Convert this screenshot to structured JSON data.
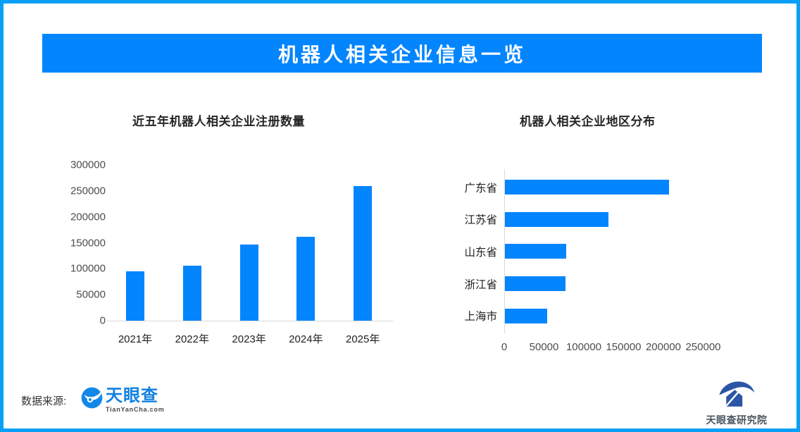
{
  "page": {
    "border_color": "#0a9ff7",
    "background": "#ffffff"
  },
  "header": {
    "title": "机器人相关企业信息一览",
    "bg_color": "#0385fe",
    "text_color": "#ffffff"
  },
  "chart_data": [
    {
      "type": "bar",
      "orientation": "vertical",
      "title": "近五年机器人相关企业注册数量",
      "categories": [
        "2021年",
        "2022年",
        "2023年",
        "2024年",
        "2025年"
      ],
      "values": [
        95000,
        106000,
        146000,
        161000,
        259000
      ],
      "bar_color": "#0385fe",
      "xlabel": "",
      "ylabel": "",
      "ylim": [
        0,
        300000
      ],
      "yticks": [
        0,
        50000,
        100000,
        150000,
        200000,
        250000,
        300000
      ],
      "grid": false,
      "legend": "none"
    },
    {
      "type": "bar",
      "orientation": "horizontal",
      "title": "机器人相关企业地区分布",
      "categories": [
        "广东省",
        "江苏省",
        "山东省",
        "浙江省",
        "上海市"
      ],
      "values": [
        206000,
        130000,
        77000,
        76000,
        53000
      ],
      "bar_color": "#0385fe",
      "xlabel": "",
      "ylabel": "",
      "xlim": [
        0,
        250000
      ],
      "xticks": [
        0,
        50000,
        100000,
        150000,
        200000,
        250000
      ],
      "grid": false,
      "legend": "none"
    }
  ],
  "footer": {
    "source_label": "数据来源:",
    "tianyancha_logo": {
      "icon": "tianyancha-eye-icon",
      "name": "天眼查",
      "domain": "TianYanCha.com",
      "name_color": "#1080e0"
    },
    "research_logo": {
      "icon": "tianyancha-research-icon",
      "name": "天眼查研究院",
      "icon_color": "#2b55a5"
    }
  }
}
